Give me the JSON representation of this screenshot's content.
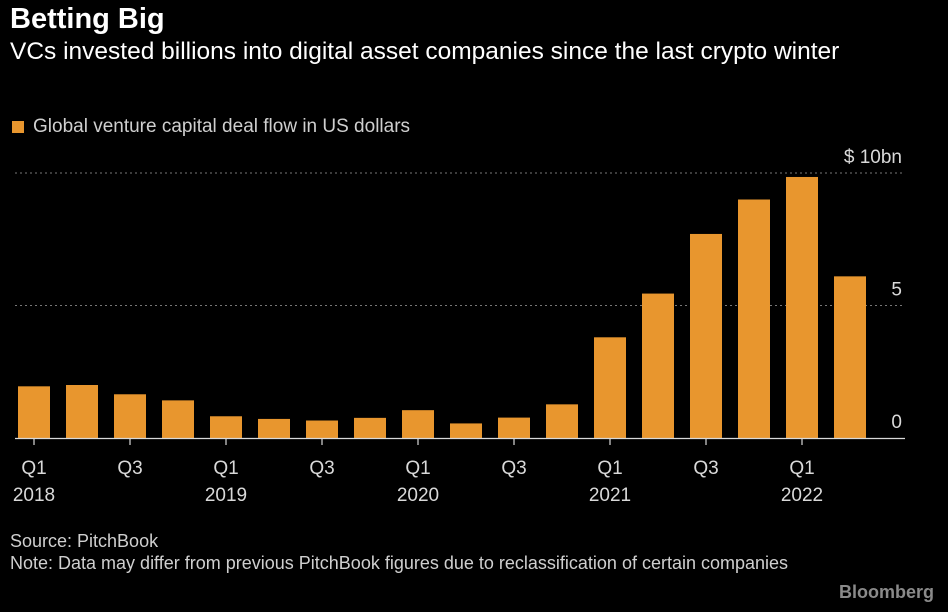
{
  "header": {
    "title": "Betting Big",
    "subtitle": "VCs invested billions into digital asset companies since the last crypto winter",
    "legend": "Global venture capital deal flow in US dollars"
  },
  "colors": {
    "bar": "#E8962E",
    "grid": "#777777",
    "axis": "#d9d9d9",
    "tick_text": "#d9d9d9"
  },
  "chart_data": {
    "type": "bar",
    "title": "Betting Big",
    "series": [
      {
        "name": "Global venture capital deal flow in US dollars",
        "values": [
          1.95,
          2.0,
          1.65,
          1.42,
          0.82,
          0.72,
          0.66,
          0.76,
          1.05,
          0.55,
          0.77,
          1.27,
          3.8,
          5.45,
          7.7,
          9.0,
          9.85,
          6.1
        ]
      }
    ],
    "categories": [
      "2018 Q1",
      "2018 Q2",
      "2018 Q3",
      "2018 Q4",
      "2019 Q1",
      "2019 Q2",
      "2019 Q3",
      "2019 Q4",
      "2020 Q1",
      "2020 Q2",
      "2020 Q3",
      "2020 Q4",
      "2021 Q1",
      "2021 Q2",
      "2021 Q3",
      "2021 Q4",
      "2022 Q1",
      "2022 Q2"
    ],
    "x_tick_labels": [
      {
        "index": 0,
        "quarter": "Q1",
        "year": "2018"
      },
      {
        "index": 2,
        "quarter": "Q3",
        "year": ""
      },
      {
        "index": 4,
        "quarter": "Q1",
        "year": "2019"
      },
      {
        "index": 6,
        "quarter": "Q3",
        "year": ""
      },
      {
        "index": 8,
        "quarter": "Q1",
        "year": "2020"
      },
      {
        "index": 10,
        "quarter": "Q3",
        "year": ""
      },
      {
        "index": 12,
        "quarter": "Q1",
        "year": "2021"
      },
      {
        "index": 14,
        "quarter": "Q3",
        "year": ""
      },
      {
        "index": 16,
        "quarter": "Q1",
        "year": "2022"
      }
    ],
    "y_ticks": [
      {
        "value": 0,
        "label": "0"
      },
      {
        "value": 5,
        "label": "5"
      },
      {
        "value": 10,
        "label": "$ 10bn"
      }
    ],
    "ylim": [
      0,
      10
    ],
    "grid": true,
    "xlabel": "",
    "ylabel": ""
  },
  "footer": {
    "source": "Source: PitchBook",
    "note": "Note: Data may differ from previous PitchBook figures due to reclassification of certain companies",
    "brand": "Bloomberg"
  }
}
